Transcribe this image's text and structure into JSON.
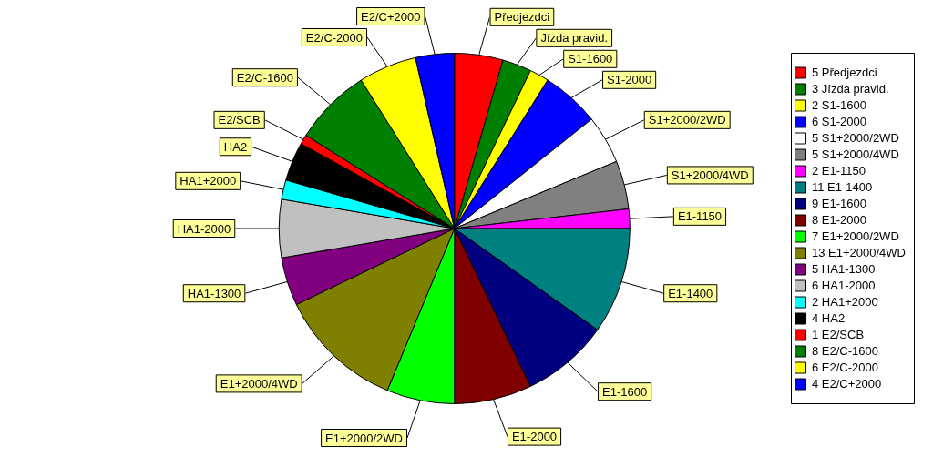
{
  "chart_data": {
    "type": "pie",
    "categories": [
      "5 Předjezdci",
      "3 Jízda pravid.",
      "2 S1-1600",
      "6 S1-2000",
      "5 S1+2000/2WD",
      "5 S1+2000/4WD",
      "2 E1-1150",
      "11 E1-1400",
      "9 E1-1600",
      "8 E1-2000",
      "7 E1+2000/2WD",
      "13 E1+2000/4WD",
      "5 HA1-1300",
      "6 HA1-2000",
      "2 HA1+2000",
      "4 HA2",
      "1 E2/SCB",
      "8 E2/C-1600",
      "6 E2/C-2000",
      "4 E2/C+2000"
    ],
    "annotations": [
      "Předjezdci",
      "Jízda pravid.",
      "S1-1600",
      "S1-2000",
      "S1+2000/2WD",
      "S1+2000/4WD",
      "E1-1150",
      "E1-1400",
      "E1-1600",
      "E1-2000",
      "E1+2000/2WD",
      "E1+2000/4WD",
      "HA1-1300",
      "HA1-2000",
      "HA1+2000",
      "HA2",
      "E2/SCB",
      "E2/C-1600",
      "E2/C-2000",
      "E2/C+2000"
    ],
    "values": [
      5,
      3,
      2,
      6,
      5,
      5,
      2,
      11,
      9,
      8,
      7,
      13,
      5,
      6,
      2,
      4,
      1,
      8,
      6,
      4
    ],
    "colors": [
      "#ff0000",
      "#008000",
      "#ffff00",
      "#0000ff",
      "#ffffff",
      "#808080",
      "#ff00ff",
      "#008080",
      "#000080",
      "#800000",
      "#00ff00",
      "#808000",
      "#800080",
      "#c0c0c0",
      "#00ffff",
      "#000000",
      "#ff0000",
      "#008000",
      "#ffff00",
      "#0000ff"
    ],
    "legend": "right"
  }
}
